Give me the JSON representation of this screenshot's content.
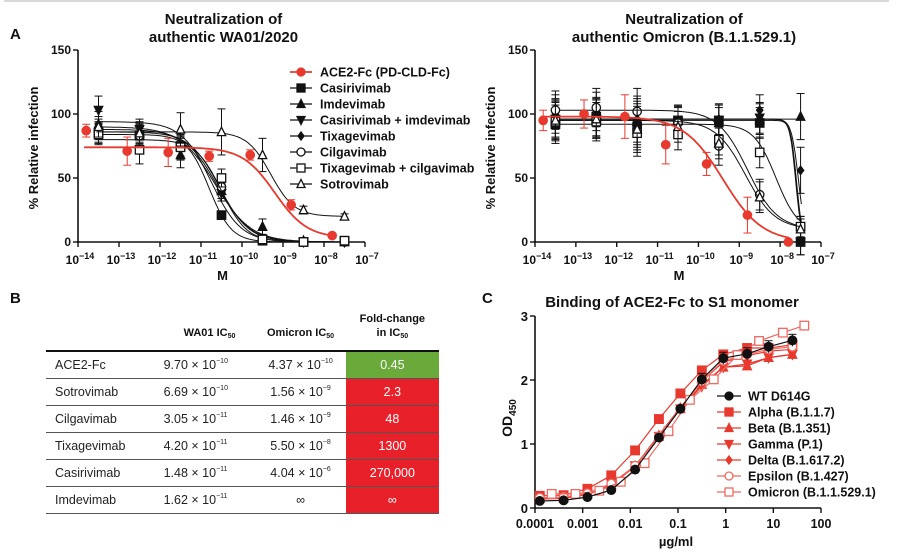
{
  "panel_letters": {
    "a": "A",
    "b": "B",
    "c": "C"
  },
  "colors": {
    "red": "#e8392f",
    "black": "#111111",
    "green": "#6aaa3a",
    "table_red": "#e8202a",
    "light_red": "#ee6a62"
  },
  "chart_data": [
    {
      "id": "wa01",
      "type": "line",
      "title": [
        "Neutralization of",
        "authentic WA01/2020"
      ],
      "xlabel": "M",
      "ylabel": "% Relative infection",
      "xscale": "log",
      "xlim_exp": [
        -14,
        -7
      ],
      "x_tick_labels": [
        "10^-14",
        "10^-13",
        "10^-12",
        "10^-11",
        "10^-10",
        "10^-9",
        "10^-8",
        "10^-7"
      ],
      "ylim": [
        0,
        150
      ],
      "y_ticks": [
        0,
        50,
        100,
        150
      ],
      "legend_position": "top-right",
      "series": [
        {
          "name": "ACE2-Fc (PD-CLD-Fc)",
          "color": "#e8392f",
          "marker": "circle-filled",
          "x_exp": [
            -13.8,
            -12.8,
            -11.8,
            -10.8,
            -9.8,
            -8.8,
            -7.8
          ],
          "y": [
            87,
            71,
            70,
            67,
            68,
            29,
            5
          ],
          "err": [
            5,
            11,
            11,
            4,
            4,
            4,
            1
          ],
          "fit": {
            "top": 74,
            "bottom": 3,
            "log_ic50": -9.2,
            "hill": 1.1
          }
        },
        {
          "name": "Casirivimab",
          "color": "#111111",
          "marker": "square-filled",
          "x_exp": [
            -13.5,
            -12.5,
            -11.5,
            -10.5,
            -9.5,
            -8.5,
            -7.5
          ],
          "y": [
            85,
            83,
            75,
            21,
            1,
            0,
            1
          ],
          "err": [
            8,
            9,
            10,
            3,
            1,
            1,
            3
          ],
          "fit": {
            "top": 84,
            "bottom": 0,
            "log_ic50": -10.8,
            "hill": 1.6
          }
        },
        {
          "name": "Imdevimab",
          "color": "#111111",
          "marker": "triangle-up-filled",
          "x_exp": [
            -13.5,
            -12.5,
            -11.5,
            -10.5,
            -9.5,
            -8.5,
            -7.5
          ],
          "y": [
            92,
            86,
            68,
            40,
            12,
            1,
            0
          ],
          "err": [
            10,
            8,
            10,
            6,
            6,
            1,
            1
          ],
          "fit": {
            "top": 90,
            "bottom": 0,
            "log_ic50": -10.65,
            "hill": 1.0
          }
        },
        {
          "name": "Casirivimab + imdevimab",
          "color": "#111111",
          "marker": "triangle-down-filled",
          "x_exp": [
            -13.5,
            -12.5,
            -11.5,
            -10.5,
            -9.5,
            -8.5,
            -7.5
          ],
          "y": [
            103,
            88,
            74,
            38,
            2,
            0,
            0
          ],
          "err": [
            11,
            8,
            10,
            6,
            2,
            1,
            1
          ],
          "fit": {
            "top": 94,
            "bottom": 0,
            "log_ic50": -10.75,
            "hill": 1.2
          }
        },
        {
          "name": "Tixagevimab",
          "color": "#111111",
          "marker": "diamond-filled",
          "x_exp": [
            -13.5,
            -12.5,
            -11.5,
            -10.5,
            -9.5,
            -8.5,
            -7.5
          ],
          "y": [
            88,
            84,
            73,
            45,
            2,
            0,
            0
          ],
          "err": [
            8,
            8,
            8,
            6,
            2,
            1,
            1
          ],
          "fit": {
            "top": 88,
            "bottom": 0,
            "log_ic50": -10.6,
            "hill": 1.1
          }
        },
        {
          "name": "Cilgavimab",
          "color": "#111111",
          "marker": "circle-open",
          "x_exp": [
            -13.5,
            -12.5,
            -11.5,
            -10.5,
            -9.5,
            -8.5,
            -7.5
          ],
          "y": [
            86,
            83,
            75,
            43,
            2,
            0,
            0
          ],
          "err": [
            8,
            8,
            8,
            6,
            2,
            1,
            1
          ],
          "fit": {
            "top": 86,
            "bottom": 0,
            "log_ic50": -10.55,
            "hill": 1.2
          }
        },
        {
          "name": "Tixagevimab + cilgavimab",
          "color": "#111111",
          "marker": "square-open",
          "x_exp": [
            -13.5,
            -12.5,
            -11.5,
            -10.5,
            -9.5,
            -8.5,
            -7.5
          ],
          "y": [
            84,
            72,
            74,
            50,
            2,
            0,
            1
          ],
          "err": [
            8,
            11,
            8,
            7,
            2,
            1,
            2
          ],
          "fit": {
            "top": 80,
            "bottom": 0,
            "log_ic50": -10.5,
            "hill": 1.4
          }
        },
        {
          "name": "Sotrovimab",
          "color": "#111111",
          "marker": "triangle-up-open",
          "x_exp": [
            -13.5,
            -12.5,
            -11.5,
            -10.5,
            -9.5,
            -8.5,
            -7.5
          ],
          "y": [
            90,
            85,
            88,
            86,
            68,
            25,
            20
          ],
          "err": [
            8,
            8,
            13,
            18,
            13,
            3,
            2
          ],
          "fit": {
            "top": 86,
            "bottom": 20,
            "log_ic50": -9.3,
            "hill": 1.5
          }
        }
      ]
    },
    {
      "id": "omicron",
      "type": "line",
      "title": [
        "Neutralization of",
        "authentic Omicron (B.1.1.529.1)"
      ],
      "xlabel": "M",
      "ylabel": "% Relative infection",
      "xscale": "log",
      "xlim_exp": [
        -14,
        -7
      ],
      "x_tick_labels": [
        "10^-14",
        "10^-13",
        "10^-12",
        "10^-11",
        "10^-10",
        "10^-9",
        "10^-8",
        "10^-7"
      ],
      "ylim": [
        0,
        150
      ],
      "y_ticks": [
        0,
        50,
        100,
        150
      ],
      "series": [
        {
          "name": "ACE2-Fc (PD-CLD-Fc)",
          "color": "#e8392f",
          "marker": "circle-filled",
          "x_exp": [
            -13.8,
            -12.8,
            -11.8,
            -10.8,
            -9.8,
            -8.8,
            -7.8
          ],
          "y": [
            95,
            100,
            98,
            76,
            61,
            21,
            0
          ],
          "err": [
            8,
            11,
            17,
            15,
            9,
            14,
            1
          ],
          "fit": {
            "top": 98,
            "bottom": 0,
            "log_ic50": -9.4,
            "hill": 0.9
          }
        },
        {
          "name": "Casirivimab",
          "color": "#111111",
          "marker": "square-filled",
          "x_exp": [
            -13.5,
            -12.5,
            -11.5,
            -10.5,
            -9.5,
            -8.5,
            -7.5
          ],
          "y": [
            92,
            98,
            90,
            95,
            95,
            93,
            0
          ],
          "err": [
            15,
            15,
            18,
            12,
            12,
            12,
            10
          ],
          "fit": {
            "top": 95,
            "bottom": 0,
            "log_ic50": -7.6,
            "hill": 6
          }
        },
        {
          "name": "Imdevimab",
          "color": "#111111",
          "marker": "triangle-up-filled",
          "x_exp": [
            -13.5,
            -12.5,
            -11.5,
            -10.5,
            -9.5,
            -8.5,
            -7.5
          ],
          "y": [
            97,
            97,
            94,
            95,
            93,
            96,
            98
          ],
          "err": [
            15,
            15,
            18,
            12,
            12,
            12,
            18
          ],
          "fit": {
            "top": 96,
            "bottom": 96,
            "log_ic50": -7.5,
            "hill": 1
          }
        },
        {
          "name": "Casirivimab + imdevimab",
          "color": "#111111",
          "marker": "triangle-down-filled",
          "x_exp": [
            -13.5,
            -12.5,
            -11.5,
            -10.5,
            -9.5,
            -8.5,
            -7.5
          ],
          "y": [
            96,
            96,
            92,
            94,
            95,
            97,
            0
          ],
          "err": [
            15,
            15,
            18,
            12,
            12,
            12,
            10
          ],
          "fit": {
            "top": 96,
            "bottom": 0,
            "log_ic50": -7.62,
            "hill": 6
          }
        },
        {
          "name": "Tixagevimab",
          "color": "#111111",
          "marker": "diamond-filled",
          "x_exp": [
            -13.5,
            -12.5,
            -11.5,
            -10.5,
            -9.5,
            -8.5,
            -7.5
          ],
          "y": [
            100,
            102,
            96,
            94,
            96,
            103,
            56
          ],
          "err": [
            15,
            15,
            18,
            12,
            12,
            12,
            18
          ],
          "fit": {
            "top": 96,
            "bottom": 0,
            "log_ic50": -7.55,
            "hill": 5
          }
        },
        {
          "name": "Cilgavimab",
          "color": "#111111",
          "marker": "circle-open",
          "x_exp": [
            -13.5,
            -12.5,
            -11.5,
            -10.5,
            -9.5,
            -8.5,
            -7.5
          ],
          "y": [
            103,
            105,
            102,
            93,
            75,
            37,
            12
          ],
          "err": [
            15,
            15,
            18,
            12,
            15,
            12,
            8
          ],
          "fit": {
            "top": 103,
            "bottom": 10,
            "log_ic50": -8.8,
            "hill": 1.2
          }
        },
        {
          "name": "Tixagevimab + cilgavimab",
          "color": "#111111",
          "marker": "square-open",
          "x_exp": [
            -13.5,
            -12.5,
            -11.5,
            -10.5,
            -9.5,
            -8.5,
            -7.5
          ],
          "y": [
            94,
            94,
            85,
            84,
            80,
            70,
            12
          ],
          "err": [
            15,
            15,
            18,
            12,
            12,
            12,
            8
          ],
          "fit": {
            "top": 92,
            "bottom": 8,
            "log_ic50": -8.1,
            "hill": 1.6
          }
        },
        {
          "name": "Sotrovimab",
          "color": "#111111",
          "marker": "triangle-up-open",
          "x_exp": [
            -13.5,
            -12.5,
            -11.5,
            -10.5,
            -9.5,
            -8.5,
            -7.5
          ],
          "y": [
            95,
            96,
            88,
            90,
            77,
            35,
            10
          ],
          "err": [
            15,
            15,
            18,
            12,
            12,
            12,
            8
          ],
          "fit": {
            "top": 95,
            "bottom": 10,
            "log_ic50": -8.85,
            "hill": 1.2
          }
        }
      ]
    },
    {
      "id": "binding",
      "type": "line",
      "title": "Binding of ACE2-Fc to S1 monomer",
      "xlabel": "µg/ml",
      "ylabel": "OD",
      "ylabel_sub": "450",
      "xscale": "log",
      "xlim_exp": [
        -4,
        2
      ],
      "x_tick_labels": [
        "0.0001",
        "0.001",
        "0.01",
        "0.1",
        "1",
        "10",
        "100"
      ],
      "ylim": [
        0,
        3
      ],
      "y_ticks": [
        0,
        1,
        2,
        3
      ],
      "legend_position": "bottom-right",
      "series": [
        {
          "name": "WT D614G",
          "color": "#111111",
          "marker": "circle-filled",
          "x_exp": [
            -3.9,
            -3.4,
            -2.9,
            -2.4,
            -1.9,
            -1.4,
            -0.95,
            -0.5,
            -0.05,
            0.45,
            0.9,
            1.4
          ],
          "y": [
            0.11,
            0.12,
            0.17,
            0.28,
            0.6,
            1.1,
            1.55,
            2.01,
            2.34,
            2.41,
            2.52,
            2.62
          ]
        },
        {
          "name": "Alpha (B.1.1.7)",
          "color": "#e8392f",
          "marker": "square-filled",
          "x_exp": [
            -3.9,
            -3.4,
            -2.9,
            -2.4,
            -1.9,
            -1.4,
            -0.95,
            -0.5,
            -0.05,
            0.45,
            0.9,
            1.4
          ],
          "y": [
            0.19,
            0.2,
            0.3,
            0.51,
            0.9,
            1.39,
            1.79,
            2.15,
            2.4,
            2.5,
            2.5,
            2.55
          ]
        },
        {
          "name": "Beta (B.1.351)",
          "color": "#e8392f",
          "marker": "triangle-up-filled",
          "x_exp": [
            -3.9,
            -3.4,
            -2.9,
            -2.4,
            -1.9,
            -1.4,
            -0.95,
            -0.5,
            -0.05,
            0.45,
            0.9,
            1.4
          ],
          "y": [
            0.15,
            0.16,
            0.22,
            0.36,
            0.65,
            1.12,
            1.55,
            1.93,
            2.2,
            2.22,
            2.35,
            2.4
          ]
        },
        {
          "name": "Gamma (P.1)",
          "color": "#e8392f",
          "marker": "triangle-down-filled",
          "x_exp": [
            -3.9,
            -3.4,
            -2.9,
            -2.4,
            -1.9,
            -1.4,
            -0.95,
            -0.5,
            -0.05,
            0.45,
            0.9,
            1.4
          ],
          "y": [
            0.15,
            0.16,
            0.22,
            0.38,
            0.66,
            1.12,
            1.55,
            1.9,
            2.2,
            2.25,
            2.35,
            2.4
          ]
        },
        {
          "name": "Delta (B.1.617.2)",
          "color": "#e8392f",
          "marker": "diamond-filled",
          "x_exp": [
            -3.9,
            -3.4,
            -2.9,
            -2.4,
            -1.9,
            -1.4,
            -0.95,
            -0.5,
            -0.05,
            0.45,
            0.9,
            1.4
          ],
          "y": [
            0.14,
            0.15,
            0.21,
            0.36,
            0.66,
            1.14,
            1.57,
            1.98,
            2.28,
            2.38,
            2.45,
            2.48
          ]
        },
        {
          "name": "Epsilon (B.1.427)",
          "color": "#ee6a62",
          "marker": "circle-open",
          "x_exp": [
            -3.9,
            -3.4,
            -2.9,
            -2.4,
            -1.9,
            -1.4,
            -0.95,
            -0.5,
            -0.05,
            0.45,
            0.9,
            1.4
          ],
          "y": [
            0.16,
            0.17,
            0.23,
            0.38,
            0.66,
            1.12,
            1.55,
            1.98,
            2.3,
            2.4,
            2.48,
            2.52
          ]
        },
        {
          "name": "Omicron (B.1.1.529.1)",
          "color": "#ee6a62",
          "marker": "square-open",
          "x_exp": [
            -3.65,
            -3.15,
            -2.65,
            -2.2,
            -1.7,
            -1.2,
            -0.75,
            -0.25,
            0.25,
            0.7,
            1.2,
            1.65
          ],
          "y": [
            0.22,
            0.22,
            0.27,
            0.41,
            0.7,
            1.2,
            1.69,
            2.01,
            2.39,
            2.61,
            2.74,
            2.85
          ]
        }
      ]
    }
  ],
  "table": {
    "headers": [
      {
        "main": "",
        "sub": ""
      },
      {
        "main": "WA01 IC",
        "sub": "50"
      },
      {
        "main": "Omicron IC",
        "sub": "50"
      },
      {
        "main_line1": "Fold-change",
        "main": "in IC",
        "sub": "50"
      }
    ],
    "rows": [
      {
        "name": "ACE2-Fc",
        "wa01": {
          "m": "9.70 × 10",
          "e": "−10"
        },
        "omicron": {
          "m": "4.37 × 10",
          "e": "−10"
        },
        "fold": "0.45",
        "fold_color": "#6aaa3a"
      },
      {
        "name": "Sotrovimab",
        "wa01": {
          "m": "6.69 × 10",
          "e": "−10"
        },
        "omicron": {
          "m": "1.56 × 10",
          "e": "−9"
        },
        "fold": "2.3",
        "fold_color": "#e8202a"
      },
      {
        "name": "Cilgavimab",
        "wa01": {
          "m": "3.05 × 10",
          "e": "−11"
        },
        "omicron": {
          "m": "1.46 × 10",
          "e": "−9"
        },
        "fold": "48",
        "fold_color": "#e8202a"
      },
      {
        "name": "Tixagevimab",
        "wa01": {
          "m": "4.20 × 10",
          "e": "−11"
        },
        "omicron": {
          "m": "5.50 × 10",
          "e": "−8"
        },
        "fold": "1300",
        "fold_color": "#e8202a"
      },
      {
        "name": "Casirivimab",
        "wa01": {
          "m": "1.48 × 10",
          "e": "−11"
        },
        "omicron": {
          "m": "4.04 × 10",
          "e": "−6"
        },
        "fold": "270,000",
        "fold_color": "#e8202a"
      },
      {
        "name": "Imdevimab",
        "wa01": {
          "m": "1.62 × 10",
          "e": "−11"
        },
        "omicron": {
          "m": "∞",
          "e": ""
        },
        "fold": "∞",
        "fold_color": "#e8202a"
      }
    ]
  }
}
